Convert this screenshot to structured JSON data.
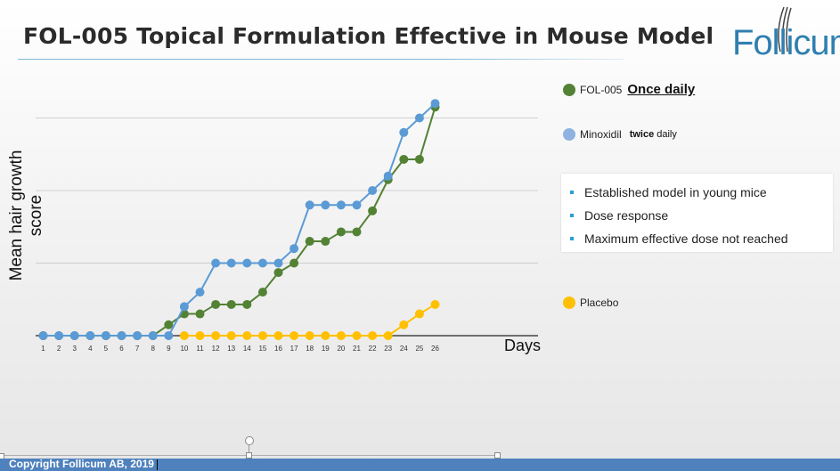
{
  "slide": {
    "title": "FOL-005 Topical Formulation Effective in Mouse Model",
    "logo_text": "Follicum",
    "footer": "Copyright Follicum AB, 2019",
    "bullets": [
      "Established model in young mice",
      "Dose response",
      "Maximum effective dose not reached"
    ],
    "legend": {
      "fol005_name": "FOL-005",
      "fol005_note": "Once daily",
      "minoxidil_name": "Minoxidil",
      "minoxidil_note_bold": "twice",
      "minoxidil_note_rest": "daily",
      "placebo_name": "Placebo"
    }
  },
  "colors": {
    "fol005": "#548235",
    "minoxidil": "#5b9bd5",
    "placebo": "#ffc000",
    "accent": "#2f7fb0",
    "footer": "#4f81bd"
  },
  "chart_data": {
    "type": "line",
    "ylabel": "Mean hair growth score",
    "xlabel": "Days",
    "x": [
      1,
      2,
      3,
      4,
      5,
      6,
      7,
      8,
      9,
      10,
      11,
      12,
      13,
      14,
      15,
      16,
      17,
      18,
      19,
      20,
      21,
      22,
      23,
      24,
      25,
      26
    ],
    "ylim": [
      0,
      3.0
    ],
    "yticks": [
      1,
      2,
      3
    ],
    "grid": true,
    "series": [
      {
        "name": "FOL-005",
        "color_key": "fol005",
        "values": [
          0,
          0,
          0,
          0,
          0,
          0,
          0,
          0,
          0.15,
          0.3,
          0.3,
          0.43,
          0.43,
          0.43,
          0.6,
          0.87,
          1.0,
          1.3,
          1.3,
          1.43,
          1.43,
          1.72,
          2.15,
          2.43,
          2.43,
          3.15
        ]
      },
      {
        "name": "Minoxidil",
        "color_key": "minoxidil",
        "values": [
          0,
          0,
          0,
          0,
          0,
          0,
          0,
          0,
          0,
          0.4,
          0.6,
          1.0,
          1.0,
          1.0,
          1.0,
          1.0,
          1.2,
          1.8,
          1.8,
          1.8,
          1.8,
          2.0,
          2.2,
          2.8,
          3.0,
          3.2
        ]
      },
      {
        "name": "Placebo",
        "color_key": "placebo",
        "values": [
          null,
          null,
          null,
          null,
          null,
          null,
          null,
          null,
          null,
          0,
          0,
          0,
          0,
          0,
          0,
          0,
          0,
          0,
          0,
          0,
          0,
          0,
          0,
          0.15,
          0.3,
          0.43
        ]
      }
    ]
  }
}
